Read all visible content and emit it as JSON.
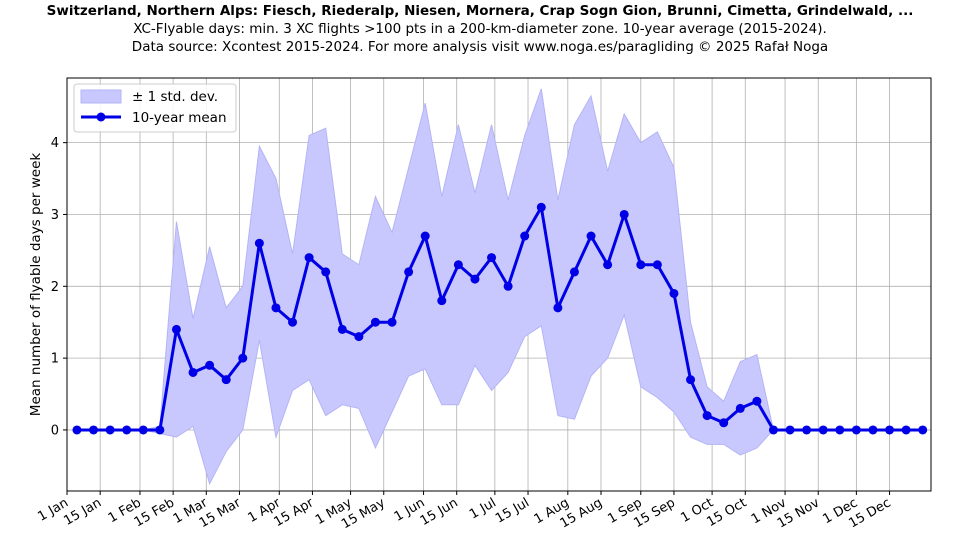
{
  "header": {
    "title": "Switzerland, Northern Alps: Fiesch, Riederalp, Niesen, Mornera, Crap Sogn Gion, Brunni, Cimetta, Grindelwald, ...",
    "subtitle": "XC-Flyable days: min. 3 XC flights >100 pts in a 200-km-diameter zone. 10-year average (2015-2024).",
    "source": "Data source: Xcontest 2015-2024. For more analysis visit www.noga.es/paragliding © 2025 Rafał Noga"
  },
  "colors": {
    "mean_line": "#0000e6",
    "band_fill": "#c8c8ff",
    "band_edge": "#b4b4f5",
    "grid": "#b0b0b0"
  },
  "chart_data": {
    "type": "line",
    "ylabel": "Mean number of flyable days per week",
    "xlabel": "",
    "x_unit": "week of year (1-52)",
    "xlim": [
      0.4,
      52.5
    ],
    "ylim": [
      -0.85,
      4.9
    ],
    "grid": true,
    "legend": {
      "placement": "top-left",
      "entries": [
        "± 1 std. dev.",
        "10-year mean"
      ]
    },
    "x_ticks": [
      {
        "label": "1 Jan",
        "x": 0.4
      },
      {
        "label": "15 Jan",
        "x": 2.4
      },
      {
        "label": "1 Feb",
        "x": 4.8
      },
      {
        "label": "15 Feb",
        "x": 6.8
      },
      {
        "label": "1 Mar",
        "x": 8.8
      },
      {
        "label": "15 Mar",
        "x": 10.8
      },
      {
        "label": "1 Apr",
        "x": 13.2
      },
      {
        "label": "15 Apr",
        "x": 15.2
      },
      {
        "label": "1 May",
        "x": 17.5
      },
      {
        "label": "15 May",
        "x": 19.5
      },
      {
        "label": "1 Jun",
        "x": 21.9
      },
      {
        "label": "15 Jun",
        "x": 23.9
      },
      {
        "label": "1 Jul",
        "x": 26.2
      },
      {
        "label": "15 Jul",
        "x": 28.2
      },
      {
        "label": "1 Aug",
        "x": 30.6
      },
      {
        "label": "15 Aug",
        "x": 32.6
      },
      {
        "label": "1 Sep",
        "x": 35.0
      },
      {
        "label": "15 Sep",
        "x": 37.0
      },
      {
        "label": "1 Oct",
        "x": 39.3
      },
      {
        "label": "15 Oct",
        "x": 41.3
      },
      {
        "label": "1 Nov",
        "x": 43.7
      },
      {
        "label": "15 Nov",
        "x": 45.7
      },
      {
        "label": "1 Dec",
        "x": 48.0
      },
      {
        "label": "15 Dec",
        "x": 50.0
      }
    ],
    "y_ticks": [
      0,
      1,
      2,
      3,
      4
    ],
    "series": [
      {
        "name": "10-year mean",
        "x": [
          1,
          2,
          3,
          4,
          5,
          6,
          7,
          8,
          9,
          10,
          11,
          12,
          13,
          14,
          15,
          16,
          17,
          18,
          19,
          20,
          21,
          22,
          23,
          24,
          25,
          26,
          27,
          28,
          29,
          30,
          31,
          32,
          33,
          34,
          35,
          36,
          37,
          38,
          39,
          40,
          41,
          42,
          43,
          44,
          45,
          46,
          47,
          48,
          49,
          50,
          51,
          52
        ],
        "values": [
          0,
          0,
          0,
          0,
          0,
          0,
          1.4,
          0.8,
          0.9,
          0.7,
          1.0,
          2.6,
          1.7,
          1.5,
          2.4,
          2.2,
          1.4,
          1.3,
          1.5,
          1.5,
          2.2,
          2.7,
          1.8,
          2.3,
          2.1,
          2.4,
          2.0,
          2.7,
          3.1,
          1.7,
          2.2,
          2.7,
          2.3,
          3.0,
          2.3,
          2.3,
          1.9,
          0.7,
          0.2,
          0.1,
          0.3,
          0.4,
          0,
          0,
          0,
          0,
          0,
          0,
          0,
          0,
          0,
          0
        ]
      },
      {
        "name": "± 1 std. dev.",
        "x": [
          1,
          2,
          3,
          4,
          5,
          6,
          7,
          8,
          9,
          10,
          11,
          12,
          13,
          14,
          15,
          16,
          17,
          18,
          19,
          20,
          21,
          22,
          23,
          24,
          25,
          26,
          27,
          28,
          29,
          30,
          31,
          32,
          33,
          34,
          35,
          36,
          37,
          38,
          39,
          40,
          41,
          42,
          43,
          44,
          45,
          46,
          47,
          48,
          49,
          50,
          51,
          52
        ],
        "upper": [
          0,
          0,
          0,
          0,
          0,
          0.05,
          2.9,
          1.55,
          2.55,
          1.7,
          2.0,
          3.95,
          3.5,
          2.45,
          4.1,
          4.2,
          2.45,
          2.3,
          3.25,
          2.75,
          3.65,
          4.55,
          3.25,
          4.25,
          3.3,
          4.25,
          3.2,
          4.1,
          4.75,
          3.2,
          4.25,
          4.65,
          3.6,
          4.4,
          4.0,
          4.15,
          3.65,
          1.5,
          0.6,
          0.4,
          0.95,
          1.05,
          0,
          0,
          0,
          0,
          0,
          0,
          0,
          0,
          0,
          0
        ],
        "lower": [
          0,
          0,
          0,
          0,
          0,
          -0.05,
          -0.1,
          0.05,
          -0.75,
          -0.3,
          0.0,
          1.25,
          -0.1,
          0.55,
          0.7,
          0.2,
          0.35,
          0.3,
          -0.25,
          0.25,
          0.75,
          0.85,
          0.35,
          0.35,
          0.9,
          0.55,
          0.8,
          1.3,
          1.45,
          0.2,
          0.15,
          0.75,
          1.0,
          1.6,
          0.6,
          0.45,
          0.25,
          -0.1,
          -0.2,
          -0.2,
          -0.35,
          -0.25,
          0,
          0,
          0,
          0,
          0,
          0,
          0,
          0,
          0,
          0
        ]
      }
    ]
  }
}
